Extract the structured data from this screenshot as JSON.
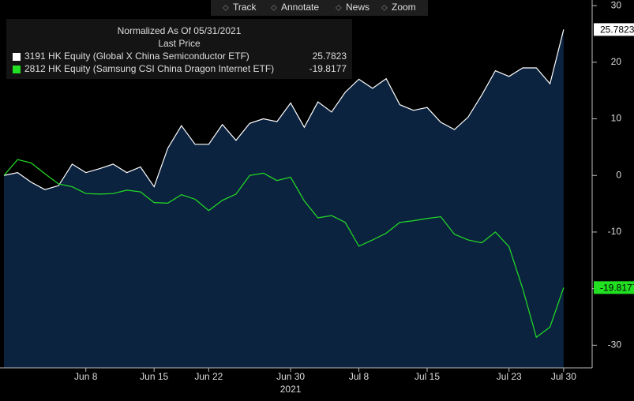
{
  "chart_data": {
    "type": "line",
    "toolbar": [
      "Track",
      "Annotate",
      "News",
      "Zoom"
    ],
    "legend_title": "Normalized As Of 05/31/2021",
    "legend_subtitle": "Last Price",
    "categories": [
      null,
      null,
      null,
      null,
      null,
      null,
      "Jun 8",
      null,
      null,
      null,
      null,
      "Jun 15",
      null,
      null,
      null,
      "Jun 22",
      null,
      null,
      null,
      null,
      null,
      "Jun 30",
      null,
      null,
      null,
      null,
      "Jul 8",
      null,
      null,
      null,
      null,
      "Jul 15",
      null,
      null,
      null,
      null,
      null,
      "Jul 23",
      null,
      null,
      null,
      "Jul 30"
    ],
    "year_label": "2021",
    "series": [
      {
        "name": "3191 HK Equity (Global X China Semiconductor ETF)",
        "color": "#ffffff",
        "fill": "#0c2340",
        "values": [
          0,
          0.5,
          -1.2,
          -2.5,
          -1.8,
          2,
          0.5,
          1.2,
          2,
          0.5,
          1.5,
          -2,
          4.8,
          8.8,
          5.5,
          5.5,
          9,
          6.2,
          9.2,
          10,
          9.5,
          12.8,
          8.5,
          13,
          11.2,
          14.7,
          17,
          15.4,
          17.1,
          12.5,
          11.5,
          12,
          9.4,
          8.1,
          10.3,
          14.2,
          18.5,
          17.5,
          19,
          19,
          16.2,
          25.7823
        ]
      },
      {
        "name": "2812 HK Equity (Samsung CSI China Dragon Internet ETF)",
        "color": "#22e022",
        "values": [
          0,
          2.8,
          2.2,
          0.3,
          -1.5,
          -2,
          -3.2,
          -3.3,
          -3.2,
          -2.6,
          -2.9,
          -4.8,
          -4.9,
          -3.4,
          -4.2,
          -6.2,
          -4.4,
          -3.3,
          0,
          0.4,
          -0.9,
          -0.3,
          -4.5,
          -7.5,
          -7.1,
          -8.3,
          -12.5,
          -11.4,
          -10.2,
          -8.3,
          -8,
          -7.6,
          -7.3,
          -10.4,
          -11.4,
          -11.9,
          -10,
          -12.6,
          -20,
          -28.6,
          -26.8,
          -19.8177
        ]
      }
    ],
    "ylim": [
      -34,
      31
    ],
    "yticks": [
      30,
      20,
      10,
      0,
      -10,
      -20,
      -30
    ],
    "grid": false
  }
}
